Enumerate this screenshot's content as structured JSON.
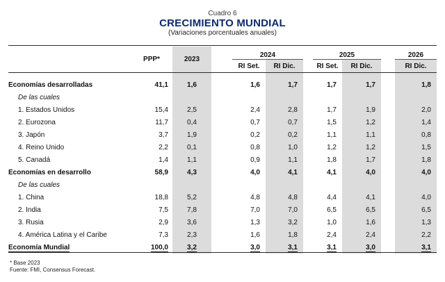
{
  "header": {
    "cuadro": "Cuadro 6",
    "title": "CRECIMIENTO MUNDIAL",
    "subtitle": "(Variaciones porcentuales anuales)"
  },
  "columns": {
    "ppp": "PPP*",
    "y2023": "2023",
    "y2024": "2024",
    "y2025": "2025",
    "y2026": "2026",
    "ri_set": "RI Set.",
    "ri_dic": "RI Dic."
  },
  "rows": [
    {
      "label": "Economías desarrolladas",
      "ppp": "41,1",
      "y2023": "1,6",
      "y2024_set": "1,6",
      "y2024_dic": "1,7",
      "y2025_set": "1,7",
      "y2025_dic": "1,7",
      "y2026_dic": "1,8"
    },
    {
      "label": "De las cuales"
    },
    {
      "label": "1. Estados Unidos",
      "ppp": "15,4",
      "y2023": "2,5",
      "y2024_set": "2,4",
      "y2024_dic": "2,8",
      "y2025_set": "1,7",
      "y2025_dic": "1,9",
      "y2026_dic": "2,0"
    },
    {
      "label": "2. Eurozona",
      "ppp": "11,7",
      "y2023": "0,4",
      "y2024_set": "0,7",
      "y2024_dic": "0,7",
      "y2025_set": "1,5",
      "y2025_dic": "1,2",
      "y2026_dic": "1,4"
    },
    {
      "label": "3. Japón",
      "ppp": "3,7",
      "y2023": "1,9",
      "y2024_set": "0,2",
      "y2024_dic": "0,2",
      "y2025_set": "1,1",
      "y2025_dic": "1,1",
      "y2026_dic": "0,8"
    },
    {
      "label": "4. Reino Unido",
      "ppp": "2,2",
      "y2023": "0,1",
      "y2024_set": "0,8",
      "y2024_dic": "1,0",
      "y2025_set": "1,2",
      "y2025_dic": "1,2",
      "y2026_dic": "1,5"
    },
    {
      "label": "5. Canadá",
      "ppp": "1,4",
      "y2023": "1,1",
      "y2024_set": "0,9",
      "y2024_dic": "1,1",
      "y2025_set": "1,8",
      "y2025_dic": "1,7",
      "y2026_dic": "1,8"
    },
    {
      "label": "Economías en desarrollo",
      "ppp": "58,9",
      "y2023": "4,3",
      "y2024_set": "4,0",
      "y2024_dic": "4,1",
      "y2025_set": "4,1",
      "y2025_dic": "4,0",
      "y2026_dic": "4,0"
    },
    {
      "label": "De las cuales"
    },
    {
      "label": "1. China",
      "ppp": "18,8",
      "y2023": "5,2",
      "y2024_set": "4,8",
      "y2024_dic": "4,8",
      "y2025_set": "4,4",
      "y2025_dic": "4,1",
      "y2026_dic": "4,0"
    },
    {
      "label": "2. India",
      "ppp": "7,5",
      "y2023": "7,8",
      "y2024_set": "7,0",
      "y2024_dic": "7,0",
      "y2025_set": "6,5",
      "y2025_dic": "6,5",
      "y2026_dic": "6,5"
    },
    {
      "label": "3. Rusia",
      "ppp": "2,9",
      "y2023": "3,6",
      "y2024_set": "1,3",
      "y2024_dic": "3,2",
      "y2025_set": "1,0",
      "y2025_dic": "1,6",
      "y2026_dic": "1,3"
    },
    {
      "label": "4. América Latina y el Caribe",
      "ppp": "7,3",
      "y2023": "2,3",
      "y2024_set": "1,6",
      "y2024_dic": "1,8",
      "y2025_set": "2,4",
      "y2025_dic": "2,4",
      "y2026_dic": "2,2"
    },
    {
      "label": "Economía Mundial",
      "ppp": "100,0",
      "y2023": "3,2",
      "y2024_set": "3,0",
      "y2024_dic": "3,1",
      "y2025_set": "3,1",
      "y2025_dic": "3,0",
      "y2026_dic": "3,1"
    }
  ],
  "notes": {
    "note1": "* Base 2023",
    "note2": "Fuente: FMI, Consensus Forecast."
  },
  "colors": {
    "title": "#0d2a6b",
    "shade": "#dcdcdc"
  }
}
